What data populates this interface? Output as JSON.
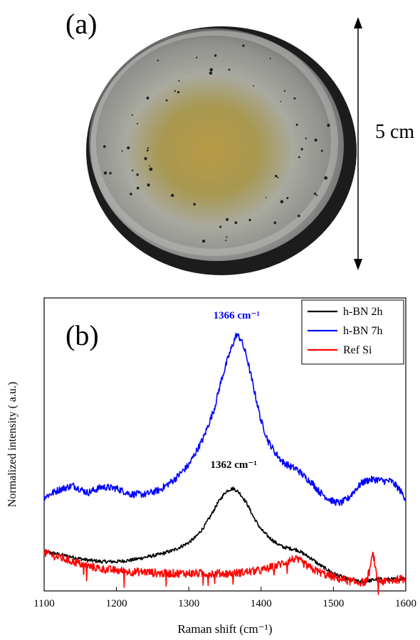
{
  "panel_a": {
    "label": "(a)",
    "scale_label": "5 cm",
    "disc_colors": {
      "rim": "#1c1c1c",
      "outer": "#a9aaa6",
      "inner": "#b89a45",
      "speck": "#222222"
    }
  },
  "panel_b": {
    "label": "(b)"
  },
  "chart_data": {
    "type": "line",
    "title": "",
    "xlabel": "Raman shift (cm⁻¹)",
    "ylabel": "Normalized intensity ( a.u.)",
    "xlim": [
      1100,
      1600
    ],
    "ylim": [
      0,
      1
    ],
    "xticks": [
      1100,
      1200,
      1300,
      1400,
      1500,
      1600
    ],
    "grid": false,
    "legend_position": "top-right",
    "series": [
      {
        "name": "h-BN 2h",
        "color": "#000000",
        "x": [
          1100,
          1120,
          1140,
          1160,
          1180,
          1200,
          1220,
          1240,
          1260,
          1280,
          1300,
          1310,
          1320,
          1330,
          1340,
          1350,
          1355,
          1362,
          1370,
          1380,
          1390,
          1400,
          1410,
          1420,
          1430,
          1440,
          1450,
          1460,
          1470,
          1480,
          1490,
          1500,
          1510,
          1520,
          1530,
          1540,
          1550,
          1560,
          1570,
          1580,
          1590,
          1600
        ],
        "y": [
          0.135,
          0.125,
          0.115,
          0.105,
          0.1,
          0.1,
          0.105,
          0.115,
          0.125,
          0.14,
          0.165,
          0.185,
          0.215,
          0.255,
          0.3,
          0.335,
          0.345,
          0.35,
          0.335,
          0.3,
          0.25,
          0.21,
          0.185,
          0.165,
          0.15,
          0.145,
          0.14,
          0.125,
          0.11,
          0.09,
          0.075,
          0.06,
          0.05,
          0.04,
          0.035,
          0.03,
          0.035,
          0.04,
          0.04,
          0.04,
          0.04,
          0.045
        ],
        "noise": 0.006
      },
      {
        "name": "h-BN 7h",
        "color": "#0000ff",
        "x": [
          1100,
          1120,
          1140,
          1160,
          1180,
          1200,
          1220,
          1240,
          1260,
          1280,
          1300,
          1320,
          1335,
          1345,
          1355,
          1362,
          1366,
          1372,
          1380,
          1390,
          1400,
          1410,
          1420,
          1430,
          1440,
          1450,
          1460,
          1470,
          1480,
          1490,
          1500,
          1510,
          1520,
          1530,
          1540,
          1550,
          1560,
          1570,
          1580,
          1590,
          1600
        ],
        "y": [
          0.32,
          0.345,
          0.36,
          0.335,
          0.355,
          0.35,
          0.33,
          0.33,
          0.345,
          0.38,
          0.43,
          0.52,
          0.62,
          0.72,
          0.8,
          0.85,
          0.875,
          0.86,
          0.8,
          0.69,
          0.58,
          0.51,
          0.47,
          0.44,
          0.425,
          0.415,
          0.39,
          0.37,
          0.34,
          0.32,
          0.305,
          0.3,
          0.315,
          0.345,
          0.37,
          0.38,
          0.38,
          0.375,
          0.375,
          0.35,
          0.315
        ],
        "noise": 0.012
      },
      {
        "name": "Ref Si",
        "color": "#ff0000",
        "x": [
          1100,
          1120,
          1140,
          1160,
          1180,
          1200,
          1220,
          1240,
          1260,
          1280,
          1300,
          1320,
          1340,
          1360,
          1380,
          1400,
          1420,
          1435,
          1445,
          1455,
          1470,
          1490,
          1510,
          1530,
          1545,
          1550,
          1555,
          1560,
          1570,
          1580,
          1590,
          1600
        ],
        "y": [
          0.13,
          0.115,
          0.1,
          0.085,
          0.075,
          0.07,
          0.065,
          0.065,
          0.06,
          0.06,
          0.06,
          0.06,
          0.06,
          0.06,
          0.065,
          0.07,
          0.085,
          0.1,
          0.11,
          0.1,
          0.075,
          0.055,
          0.04,
          0.03,
          0.03,
          0.07,
          0.13,
          0.04,
          0.03,
          0.035,
          0.04,
          0.04
        ],
        "noise": 0.014
      }
    ],
    "annotations": [
      {
        "text": "1366 cm⁻¹",
        "x": 1366,
        "y": 0.93,
        "color": "#0000ff"
      },
      {
        "text": "1362 cm⁻¹",
        "x": 1362,
        "y": 0.42,
        "color": "#000000"
      }
    ]
  }
}
